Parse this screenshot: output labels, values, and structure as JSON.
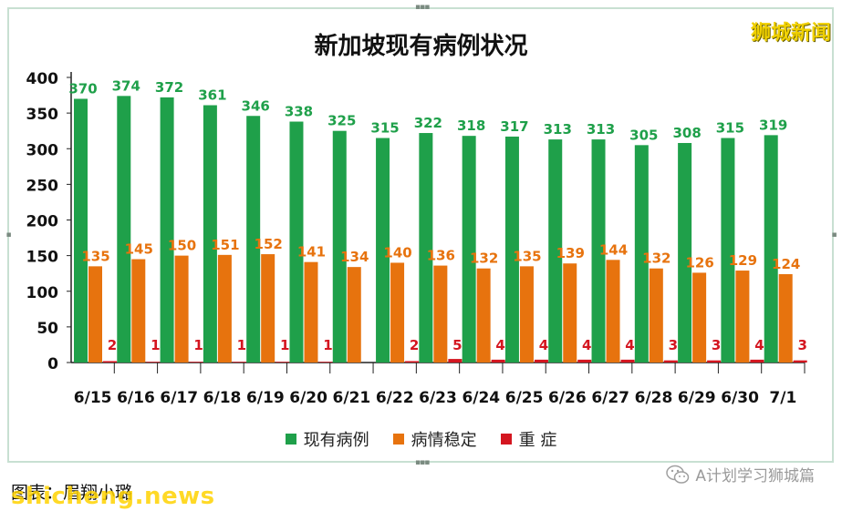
{
  "chart_data": {
    "type": "bar",
    "title": "新加坡现有病例状况",
    "categories": [
      "6/15",
      "6/16",
      "6/17",
      "6/18",
      "6/19",
      "6/20",
      "6/21",
      "6/22",
      "6/23",
      "6/24",
      "6/25",
      "6/26",
      "6/27",
      "6/28",
      "6/29",
      "6/30",
      "7/1"
    ],
    "series": [
      {
        "name": "现有病例",
        "color": "#1fa04a",
        "values": [
          370,
          374,
          372,
          361,
          346,
          338,
          325,
          315,
          322,
          318,
          317,
          313,
          313,
          305,
          308,
          315,
          319
        ]
      },
      {
        "name": "病情稳定",
        "color": "#e7730e",
        "values": [
          135,
          145,
          150,
          151,
          152,
          141,
          134,
          140,
          136,
          132,
          135,
          139,
          144,
          132,
          126,
          129,
          124
        ]
      },
      {
        "name": "重 症",
        "color": "#d41620",
        "values": [
          2,
          1,
          1,
          1,
          1,
          1,
          0,
          2,
          5,
          4,
          4,
          4,
          4,
          3,
          3,
          4,
          3
        ]
      }
    ],
    "data_labels": [
      [
        "370",
        "374",
        "372",
        "361",
        "346",
        "338",
        "325",
        "315",
        "322",
        "318",
        "317",
        "313",
        "313",
        "305",
        "308",
        "315",
        "319"
      ],
      [
        "135",
        "145",
        "150",
        "151",
        "152",
        "141",
        "134",
        "140",
        "136",
        "132",
        "135",
        "139",
        "144",
        "132",
        "126",
        "129",
        "124"
      ],
      [
        "2",
        "1",
        "1",
        "1",
        "1",
        "1",
        "",
        "2",
        "5",
        "4",
        "4",
        "4",
        "4",
        "3",
        "3",
        "4",
        "3"
      ]
    ],
    "label_colors": [
      "#1fa04a",
      "#e7730e",
      "#d41620"
    ],
    "y_ticks": [
      "0",
      "50",
      "100",
      "150",
      "200",
      "250",
      "300",
      "350",
      "400"
    ],
    "ylim": [
      0,
      400
    ],
    "legend_position": "bottom",
    "grid": false
  },
  "watermark": {
    "brand": "狮城新闻",
    "caption": "图表：眉翔小璐",
    "site": "shicheng.news",
    "wechat": "A计划学习狮城篇"
  }
}
